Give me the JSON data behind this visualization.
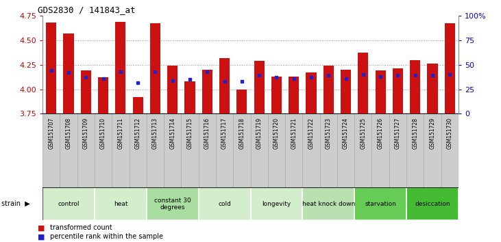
{
  "title": "GDS2830 / 141843_at",
  "samples": [
    "GSM151707",
    "GSM151708",
    "GSM151709",
    "GSM151710",
    "GSM151711",
    "GSM151712",
    "GSM151713",
    "GSM151714",
    "GSM151715",
    "GSM151716",
    "GSM151717",
    "GSM151718",
    "GSM151719",
    "GSM151720",
    "GSM151721",
    "GSM151722",
    "GSM151723",
    "GSM151724",
    "GSM151725",
    "GSM151726",
    "GSM151727",
    "GSM151728",
    "GSM151729",
    "GSM151730"
  ],
  "red_values": [
    4.68,
    4.57,
    4.19,
    4.12,
    4.69,
    3.92,
    4.67,
    4.24,
    4.08,
    4.2,
    4.32,
    4.0,
    4.29,
    4.13,
    4.13,
    4.17,
    4.24,
    4.2,
    4.37,
    4.19,
    4.21,
    4.3,
    4.26,
    4.67
  ],
  "blue_values": [
    4.19,
    4.17,
    4.12,
    4.11,
    4.18,
    4.07,
    4.18,
    4.09,
    4.1,
    4.18,
    4.08,
    4.08,
    4.14,
    4.12,
    4.11,
    4.12,
    4.14,
    4.11,
    4.15,
    4.13,
    4.14,
    4.14,
    4.14,
    4.15
  ],
  "groups": [
    {
      "label": "control",
      "start": 0,
      "end": 3,
      "color": "#d4edcc"
    },
    {
      "label": "heat",
      "start": 3,
      "end": 6,
      "color": "#d4edcc"
    },
    {
      "label": "constant 30\ndegrees",
      "start": 6,
      "end": 9,
      "color": "#aadda0"
    },
    {
      "label": "cold",
      "start": 9,
      "end": 12,
      "color": "#d4edcc"
    },
    {
      "label": "longevity",
      "start": 12,
      "end": 15,
      "color": "#d4edcc"
    },
    {
      "label": "heat knock down",
      "start": 15,
      "end": 18,
      "color": "#b8e0b0"
    },
    {
      "label": "starvation",
      "start": 18,
      "end": 21,
      "color": "#66cc55"
    },
    {
      "label": "desiccation",
      "start": 21,
      "end": 24,
      "color": "#44bb33"
    }
  ],
  "ylim": [
    3.75,
    4.75
  ],
  "y2lim": [
    0,
    100
  ],
  "yticks": [
    3.75,
    4.0,
    4.25,
    4.5,
    4.75
  ],
  "y2ticks": [
    0,
    25,
    50,
    75,
    100
  ],
  "bar_color": "#cc1111",
  "dot_color": "#2222cc",
  "left_label_color": "#cc0000",
  "right_label_color": "#0000cc",
  "sample_bg": "#cccccc",
  "sample_bg_alt": "#bbbbbb"
}
